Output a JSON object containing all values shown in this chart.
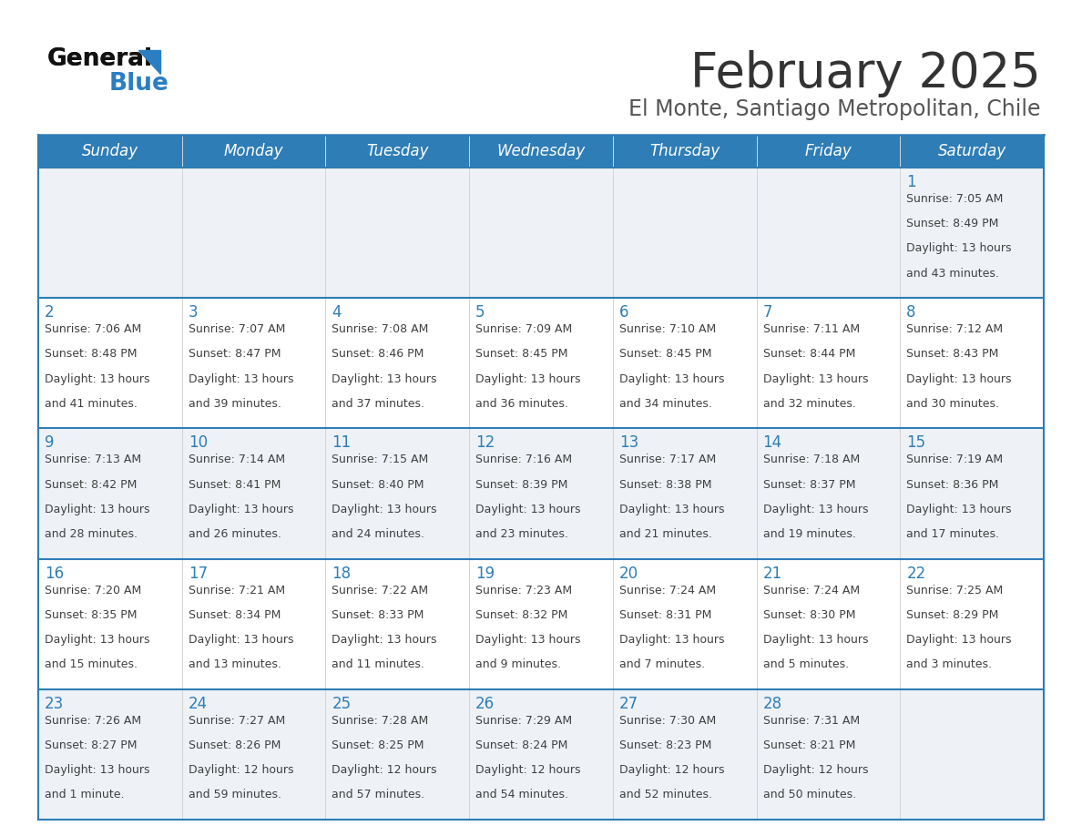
{
  "title": "February 2025",
  "subtitle": "El Monte, Santiago Metropolitan, Chile",
  "days_of_week": [
    "Sunday",
    "Monday",
    "Tuesday",
    "Wednesday",
    "Thursday",
    "Friday",
    "Saturday"
  ],
  "header_bg": "#2e7db6",
  "header_text": "#ffffff",
  "row_bg_odd": "#eef2f7",
  "row_bg_even": "#ffffff",
  "cell_border_color": "#2e7db6",
  "day_number_color": "#2e7db6",
  "info_text_color": "#404040",
  "title_color": "#333333",
  "subtitle_color": "#555555",
  "logo_general_color": "#111111",
  "logo_blue_color": "#2b7ec1",
  "logo_triangle_color": "#2b7ec1",
  "calendar": [
    [
      null,
      null,
      null,
      null,
      null,
      null,
      {
        "day": 1,
        "sunrise": "7:05 AM",
        "sunset": "8:49 PM",
        "dl1": "13 hours",
        "dl2": "and 43 minutes."
      }
    ],
    [
      {
        "day": 2,
        "sunrise": "7:06 AM",
        "sunset": "8:48 PM",
        "dl1": "13 hours",
        "dl2": "and 41 minutes."
      },
      {
        "day": 3,
        "sunrise": "7:07 AM",
        "sunset": "8:47 PM",
        "dl1": "13 hours",
        "dl2": "and 39 minutes."
      },
      {
        "day": 4,
        "sunrise": "7:08 AM",
        "sunset": "8:46 PM",
        "dl1": "13 hours",
        "dl2": "and 37 minutes."
      },
      {
        "day": 5,
        "sunrise": "7:09 AM",
        "sunset": "8:45 PM",
        "dl1": "13 hours",
        "dl2": "and 36 minutes."
      },
      {
        "day": 6,
        "sunrise": "7:10 AM",
        "sunset": "8:45 PM",
        "dl1": "13 hours",
        "dl2": "and 34 minutes."
      },
      {
        "day": 7,
        "sunrise": "7:11 AM",
        "sunset": "8:44 PM",
        "dl1": "13 hours",
        "dl2": "and 32 minutes."
      },
      {
        "day": 8,
        "sunrise": "7:12 AM",
        "sunset": "8:43 PM",
        "dl1": "13 hours",
        "dl2": "and 30 minutes."
      }
    ],
    [
      {
        "day": 9,
        "sunrise": "7:13 AM",
        "sunset": "8:42 PM",
        "dl1": "13 hours",
        "dl2": "and 28 minutes."
      },
      {
        "day": 10,
        "sunrise": "7:14 AM",
        "sunset": "8:41 PM",
        "dl1": "13 hours",
        "dl2": "and 26 minutes."
      },
      {
        "day": 11,
        "sunrise": "7:15 AM",
        "sunset": "8:40 PM",
        "dl1": "13 hours",
        "dl2": "and 24 minutes."
      },
      {
        "day": 12,
        "sunrise": "7:16 AM",
        "sunset": "8:39 PM",
        "dl1": "13 hours",
        "dl2": "and 23 minutes."
      },
      {
        "day": 13,
        "sunrise": "7:17 AM",
        "sunset": "8:38 PM",
        "dl1": "13 hours",
        "dl2": "and 21 minutes."
      },
      {
        "day": 14,
        "sunrise": "7:18 AM",
        "sunset": "8:37 PM",
        "dl1": "13 hours",
        "dl2": "and 19 minutes."
      },
      {
        "day": 15,
        "sunrise": "7:19 AM",
        "sunset": "8:36 PM",
        "dl1": "13 hours",
        "dl2": "and 17 minutes."
      }
    ],
    [
      {
        "day": 16,
        "sunrise": "7:20 AM",
        "sunset": "8:35 PM",
        "dl1": "13 hours",
        "dl2": "and 15 minutes."
      },
      {
        "day": 17,
        "sunrise": "7:21 AM",
        "sunset": "8:34 PM",
        "dl1": "13 hours",
        "dl2": "and 13 minutes."
      },
      {
        "day": 18,
        "sunrise": "7:22 AM",
        "sunset": "8:33 PM",
        "dl1": "13 hours",
        "dl2": "and 11 minutes."
      },
      {
        "day": 19,
        "sunrise": "7:23 AM",
        "sunset": "8:32 PM",
        "dl1": "13 hours",
        "dl2": "and 9 minutes."
      },
      {
        "day": 20,
        "sunrise": "7:24 AM",
        "sunset": "8:31 PM",
        "dl1": "13 hours",
        "dl2": "and 7 minutes."
      },
      {
        "day": 21,
        "sunrise": "7:24 AM",
        "sunset": "8:30 PM",
        "dl1": "13 hours",
        "dl2": "and 5 minutes."
      },
      {
        "day": 22,
        "sunrise": "7:25 AM",
        "sunset": "8:29 PM",
        "dl1": "13 hours",
        "dl2": "and 3 minutes."
      }
    ],
    [
      {
        "day": 23,
        "sunrise": "7:26 AM",
        "sunset": "8:27 PM",
        "dl1": "13 hours",
        "dl2": "and 1 minute."
      },
      {
        "day": 24,
        "sunrise": "7:27 AM",
        "sunset": "8:26 PM",
        "dl1": "12 hours",
        "dl2": "and 59 minutes."
      },
      {
        "day": 25,
        "sunrise": "7:28 AM",
        "sunset": "8:25 PM",
        "dl1": "12 hours",
        "dl2": "and 57 minutes."
      },
      {
        "day": 26,
        "sunrise": "7:29 AM",
        "sunset": "8:24 PM",
        "dl1": "12 hours",
        "dl2": "and 54 minutes."
      },
      {
        "day": 27,
        "sunrise": "7:30 AM",
        "sunset": "8:23 PM",
        "dl1": "12 hours",
        "dl2": "and 52 minutes."
      },
      {
        "day": 28,
        "sunrise": "7:31 AM",
        "sunset": "8:21 PM",
        "dl1": "12 hours",
        "dl2": "and 50 minutes."
      },
      null
    ]
  ]
}
